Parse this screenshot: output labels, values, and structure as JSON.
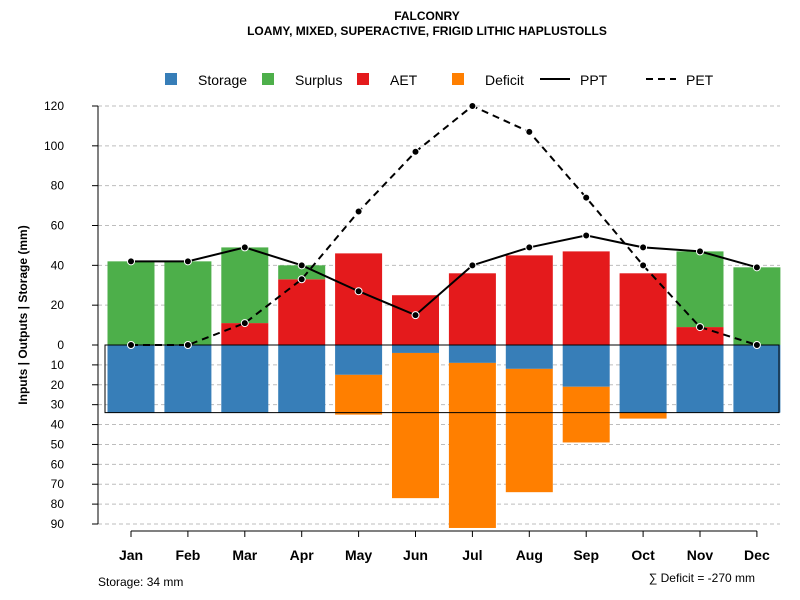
{
  "chart_data": {
    "type": "bar",
    "title": "FALCONRY",
    "subtitle": "LOAMY, MIXED, SUPERACTIVE, FRIGID LITHIC HAPLUSTOLLS",
    "ylabel": "Inputs | Outputs | Storage     (mm)",
    "categories": [
      "Jan",
      "Feb",
      "Mar",
      "Apr",
      "May",
      "Jun",
      "Jul",
      "Aug",
      "Sep",
      "Oct",
      "Nov",
      "Dec"
    ],
    "ylim_upper": [
      0,
      120
    ],
    "ylim_lower": [
      0,
      90
    ],
    "upper_ticks": [
      0,
      20,
      40,
      60,
      80,
      100,
      120
    ],
    "lower_ticks": [
      10,
      20,
      30,
      40,
      50,
      60,
      70,
      80,
      90
    ],
    "legend": [
      {
        "label": "Storage",
        "kind": "box",
        "color": "#377EB8"
      },
      {
        "label": "Surplus",
        "kind": "box",
        "color": "#4DAF4A"
      },
      {
        "label": "AET",
        "kind": "box",
        "color": "#E41A1C"
      },
      {
        "label": "Deficit",
        "kind": "box",
        "color": "#FF7F00"
      },
      {
        "label": "PPT",
        "kind": "solid",
        "color": "#000000"
      },
      {
        "label": "PET",
        "kind": "dashed",
        "color": "#000000"
      }
    ],
    "series": [
      {
        "name": "AET",
        "values": [
          0,
          0,
          11,
          33,
          46,
          25,
          36,
          45,
          47,
          36,
          9,
          0
        ]
      },
      {
        "name": "Surplus",
        "values": [
          42,
          42,
          38,
          7,
          0,
          0,
          0,
          0,
          0,
          0,
          38,
          39
        ]
      },
      {
        "name": "Storage",
        "values": [
          34,
          34,
          34,
          34,
          15,
          4,
          9,
          12,
          21,
          34,
          34,
          34
        ]
      },
      {
        "name": "Deficit",
        "values": [
          0,
          0,
          0,
          0,
          20,
          73,
          83,
          62,
          28,
          3,
          0,
          0
        ]
      },
      {
        "name": "PPT",
        "values": [
          42,
          42,
          49,
          40,
          27,
          15,
          40,
          49,
          55,
          49,
          47,
          39
        ]
      },
      {
        "name": "PET",
        "values": [
          0,
          0,
          11,
          33,
          67,
          97,
          120,
          107,
          74,
          40,
          9,
          0
        ]
      }
    ],
    "storage_capacity": 34,
    "footer_left": "Storage: 34 mm",
    "footer_right": "∑ Deficit = -270 mm"
  }
}
